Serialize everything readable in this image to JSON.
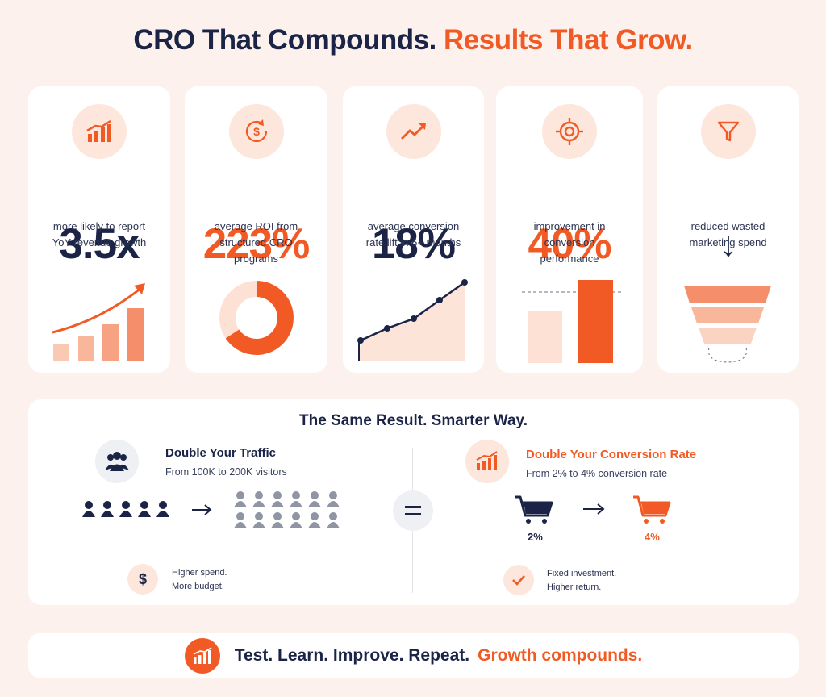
{
  "header": {
    "title_part1": "CRO That Compounds.",
    "title_part2": "Results That Grow."
  },
  "stats": [
    {
      "value": "3.5x",
      "desc_lines": [
        "more likely to report",
        "YoY revenue growth"
      ],
      "icon": "growth-bars-icon",
      "color": "#1b2447"
    },
    {
      "value": "223%",
      "desc_lines": [
        "average ROI from",
        "structured CRO",
        "programs"
      ],
      "icon": "dollar-cycle-icon",
      "color": "#f15a24"
    },
    {
      "value": "18%",
      "desc_lines": [
        "average conversion",
        "rate lift in 6+ months"
      ],
      "icon": "trend-up-icon",
      "color": "#1b2447"
    },
    {
      "value": "40%",
      "desc_lines": [
        "improvement in",
        "conversion",
        "performance"
      ],
      "icon": "target-icon",
      "color": "#f15a24"
    },
    {
      "value": "↓",
      "desc_lines": [
        "reduced wasted",
        "marketing spend"
      ],
      "icon": "funnel-icon",
      "color": "#1b2447"
    }
  ],
  "comparison": {
    "title": "The Same Result. Smarter Way.",
    "left": {
      "title": "Double Your Traffic",
      "subtitle": "From 100K to 200K visitors",
      "icon": "people-group-icon",
      "note_lines": [
        "Higher spend.",
        "More budget."
      ],
      "note_icon": "dollar-icon",
      "from_people": 5,
      "to_people": 12
    },
    "equals_icon": "equals-icon",
    "right": {
      "title": "Double Your Conversion Rate",
      "subtitle": "From 2% to 4% conversion rate",
      "icon": "growth-bars-icon",
      "from_rate": "2%",
      "to_rate": "4%",
      "note_lines": [
        "Fixed investment.",
        "Higher return."
      ],
      "note_icon": "check-icon"
    }
  },
  "footer": {
    "text_part1": "Test. Learn. Improve. Repeat.",
    "text_part2": "Growth compounds.",
    "icon": "growth-bars-icon"
  },
  "colors": {
    "navy": "#1b2447",
    "orange": "#f15a24",
    "peach": "#fde7dc",
    "background": "#fcf1ec",
    "grey_people": "#8f95a3"
  }
}
